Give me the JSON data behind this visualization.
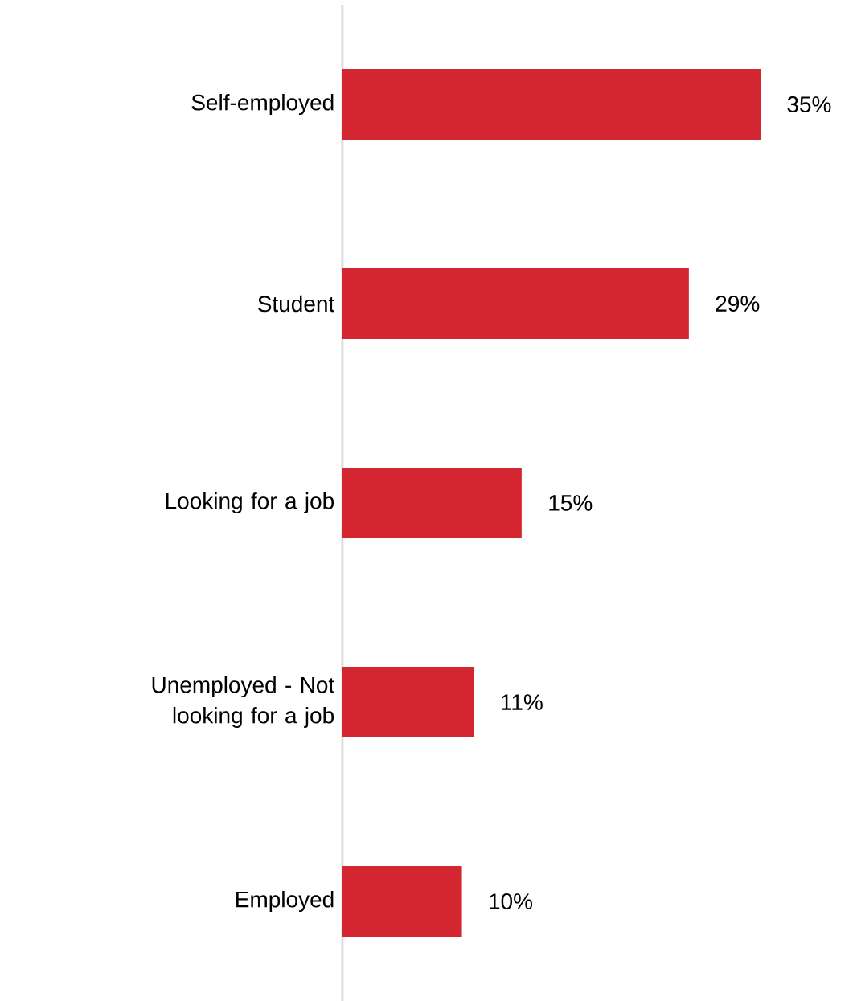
{
  "chart_data": {
    "type": "bar",
    "orientation": "horizontal",
    "categories": [
      "Self-employed",
      "Student",
      "Looking for a job",
      "Unemployed - Not looking for a job",
      "Employed"
    ],
    "values": [
      35,
      29,
      15,
      11,
      10
    ],
    "value_labels": [
      "35%",
      "29%",
      "15%",
      "11%",
      "10%"
    ],
    "color": "#d42630"
  }
}
